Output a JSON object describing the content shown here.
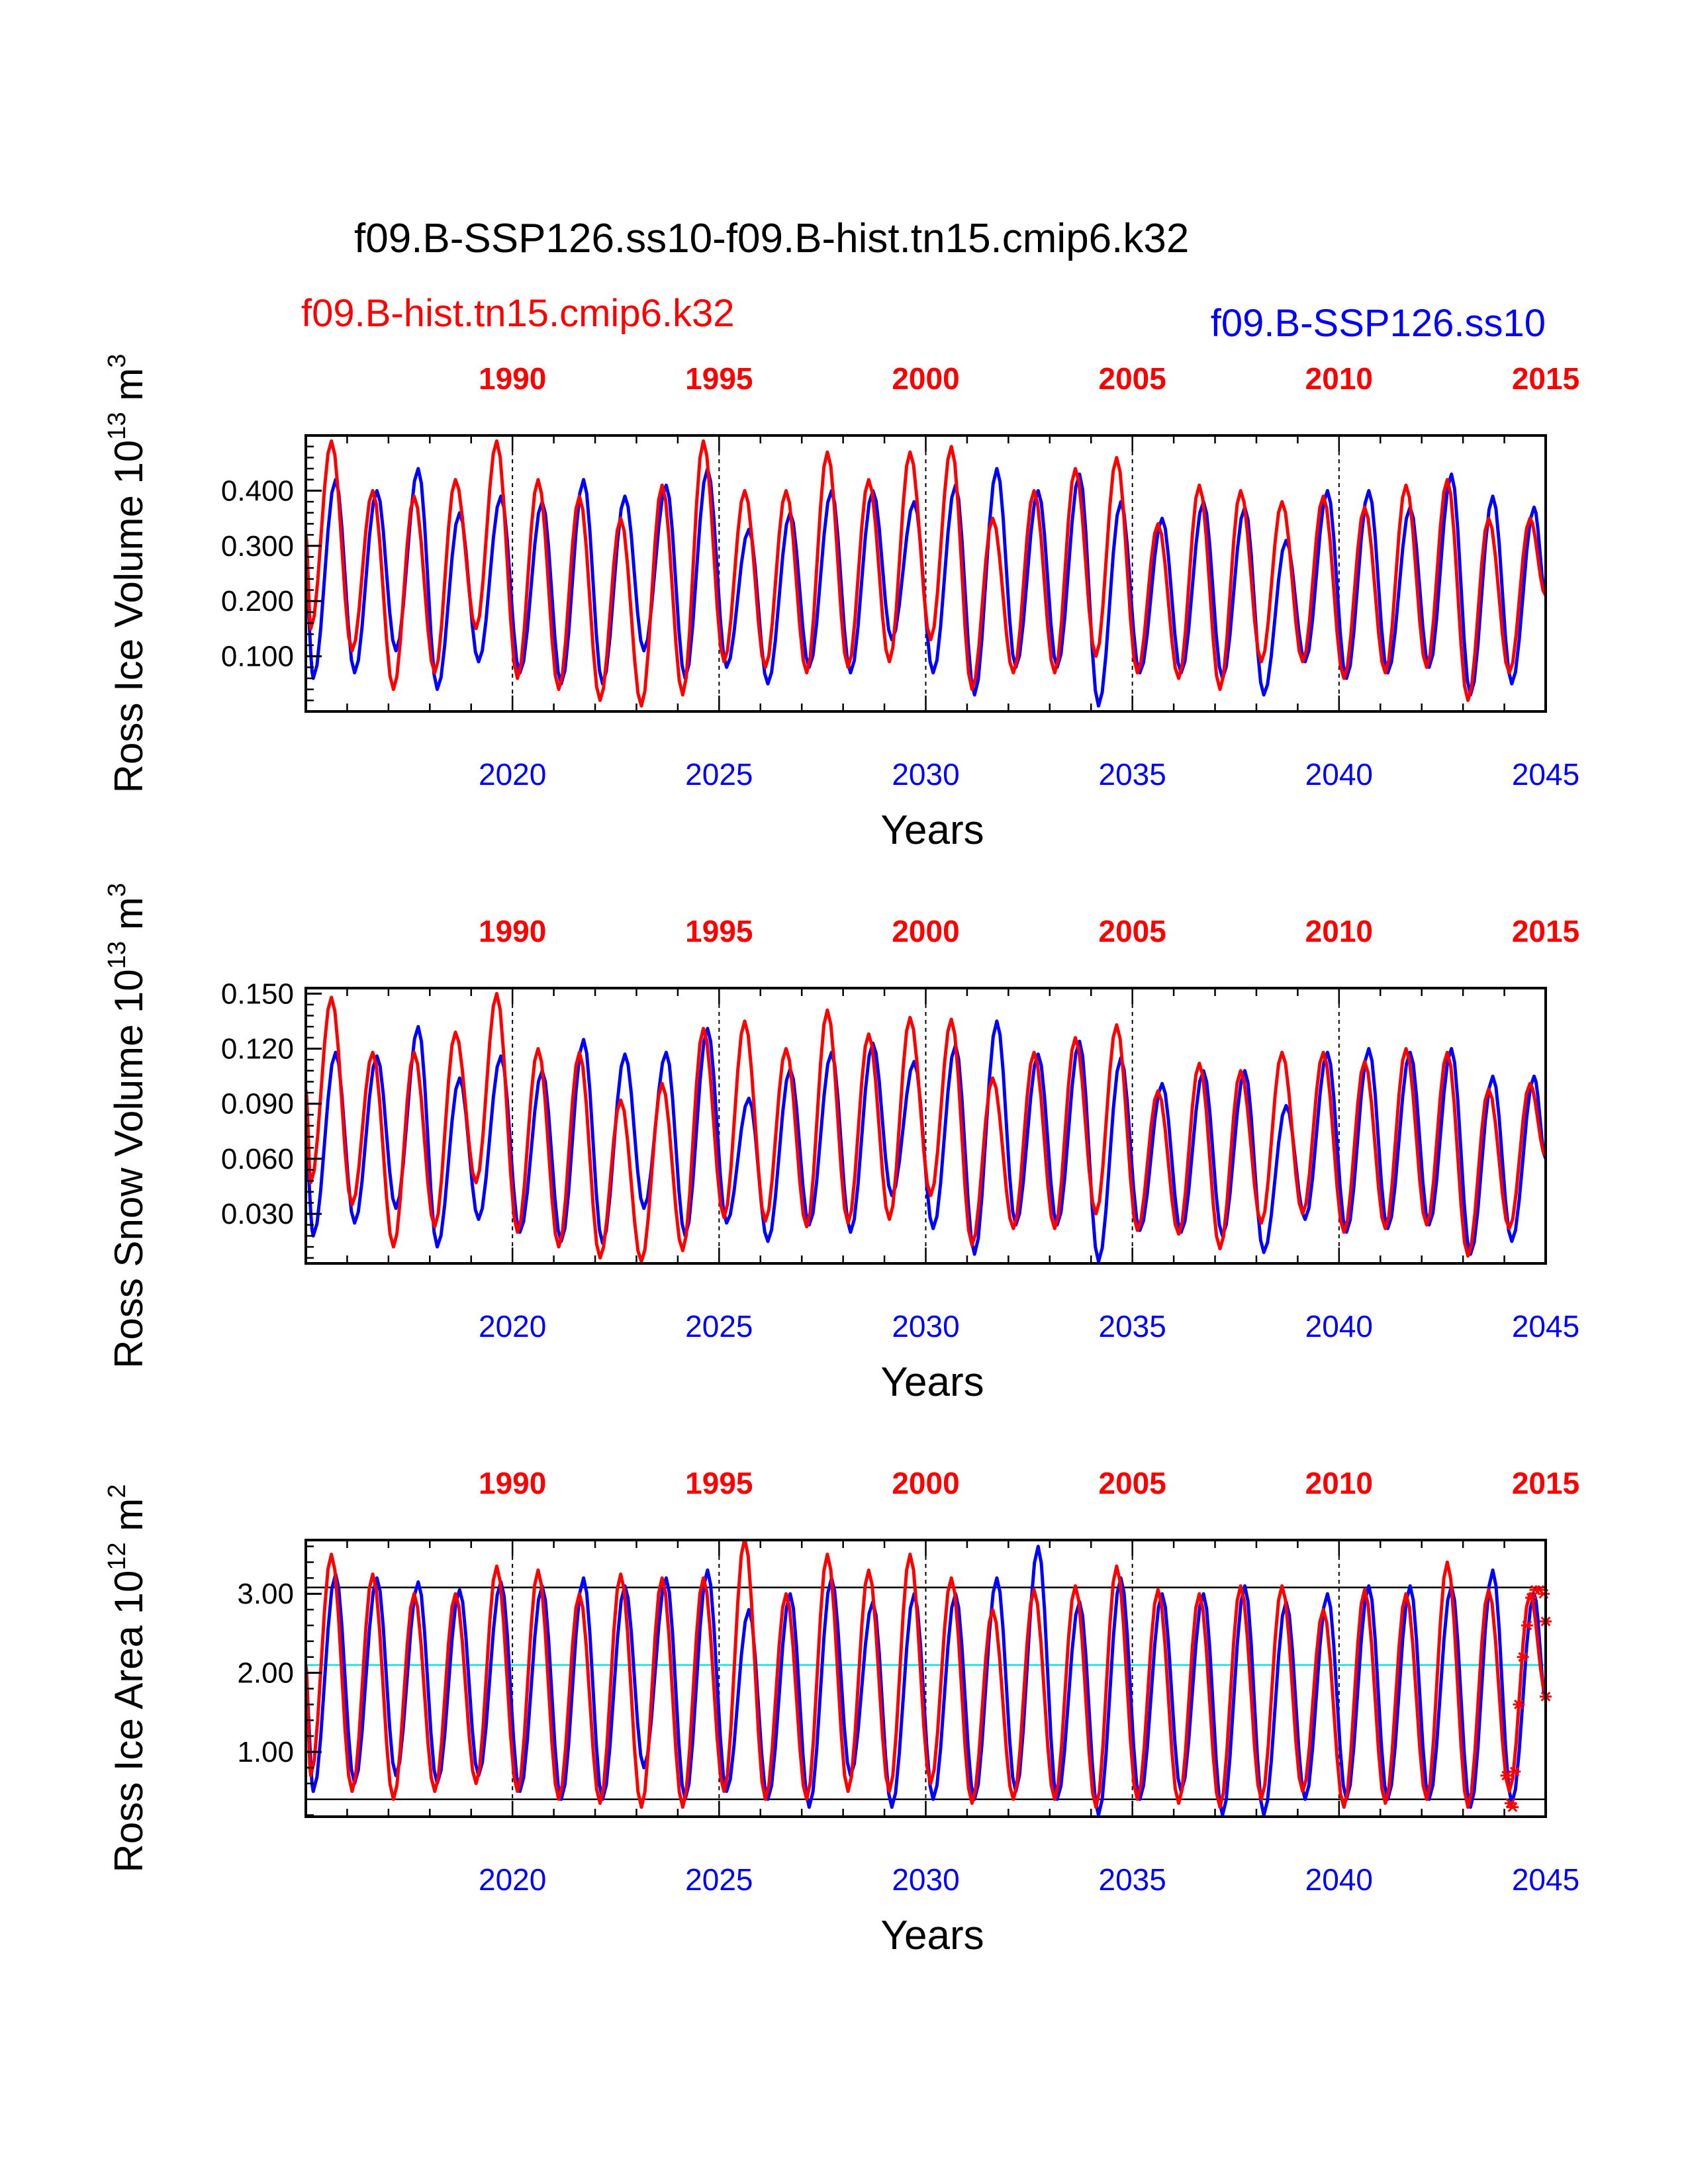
{
  "figure": {
    "title": "f09.B-SSP126.ss10-f09.B-hist.tn15.cmip6.k32",
    "legend_hist": "f09.B-hist.tn15.cmip6.k32",
    "legend_ssp": "f09.B-SSP126.ss10",
    "colors": {
      "hist": "#ff0000",
      "ssp": "#0000ff",
      "threshold": "#00e5e5",
      "axis": "#000000"
    }
  },
  "chart_data": [
    {
      "type": "line",
      "name": "ross-ice-volume",
      "ylabel": "Ross Ice Volume 10",
      "ylabel_exp": "13",
      "ylabel_unit": "m",
      "ylabel_unit_exp": "3",
      "xlabel": "Years",
      "x_range_ssp": [
        2015,
        2045
      ],
      "x_range_hist": [
        1985,
        2015
      ],
      "ylim": [
        0.0,
        0.5
      ],
      "yticks": [
        0.1,
        0.2,
        0.3,
        0.4
      ],
      "ytick_labels": [
        "0.100",
        "0.200",
        "0.300",
        "0.400"
      ],
      "xticks_ssp": [
        "2020",
        "2025",
        "2030",
        "2035",
        "2040",
        "2045"
      ],
      "xticks_hist": [
        "1990",
        "1995",
        "2000",
        "2005",
        "2010",
        "2015"
      ],
      "seasonal": {
        "ssp_max": [
          0.42,
          0.4,
          0.44,
          0.36,
          0.39,
          0.38,
          0.42,
          0.39,
          0.41,
          0.44,
          0.33,
          0.36,
          0.4,
          0.4,
          0.38,
          0.41,
          0.44,
          0.4,
          0.43,
          0.38,
          0.35,
          0.38,
          0.37,
          0.31,
          0.4,
          0.4,
          0.37,
          0.43,
          0.39,
          0.37
        ],
        "ssp_min": [
          0.06,
          0.07,
          0.11,
          0.04,
          0.09,
          0.07,
          0.05,
          0.05,
          0.11,
          0.06,
          0.08,
          0.05,
          0.08,
          0.07,
          0.13,
          0.07,
          0.03,
          0.08,
          0.08,
          0.01,
          0.07,
          0.07,
          0.06,
          0.03,
          0.09,
          0.06,
          0.07,
          0.08,
          0.03,
          0.05
        ],
        "hist_max": [
          0.49,
          0.4,
          0.39,
          0.42,
          0.49,
          0.42,
          0.39,
          0.35,
          0.41,
          0.49,
          0.4,
          0.4,
          0.47,
          0.42,
          0.47,
          0.48,
          0.35,
          0.4,
          0.44,
          0.46,
          0.34,
          0.41,
          0.4,
          0.38,
          0.39,
          0.37,
          0.41,
          0.42,
          0.35,
          0.35
        ],
        "hist_min": [
          0.15,
          0.11,
          0.04,
          0.07,
          0.15,
          0.06,
          0.04,
          0.02,
          0.01,
          0.03,
          0.09,
          0.08,
          0.07,
          0.08,
          0.09,
          0.13,
          0.04,
          0.07,
          0.07,
          0.1,
          0.07,
          0.06,
          0.04,
          0.09,
          0.09,
          0.06,
          0.07,
          0.08,
          0.02,
          0.07
        ]
      }
    },
    {
      "type": "line",
      "name": "ross-snow-volume",
      "ylabel": "Ross Snow Volume 10",
      "ylabel_exp": "13",
      "ylabel_unit": "m",
      "ylabel_unit_exp": "3",
      "xlabel": "Years",
      "x_range_ssp": [
        2015,
        2045
      ],
      "x_range_hist": [
        1985,
        2015
      ],
      "ylim": [
        0.003,
        0.153
      ],
      "yticks": [
        0.03,
        0.06,
        0.09,
        0.12,
        0.15
      ],
      "ytick_labels": [
        "0.030",
        "0.060",
        "0.090",
        "0.120",
        "0.150"
      ],
      "xticks_ssp": [
        "2020",
        "2025",
        "2030",
        "2035",
        "2040",
        "2045"
      ],
      "xticks_hist": [
        "1990",
        "1995",
        "2000",
        "2005",
        "2010",
        "2015"
      ],
      "seasonal": {
        "ssp_max": [
          0.118,
          0.116,
          0.132,
          0.104,
          0.116,
          0.108,
          0.125,
          0.117,
          0.118,
          0.131,
          0.093,
          0.109,
          0.118,
          0.123,
          0.113,
          0.122,
          0.135,
          0.117,
          0.124,
          0.115,
          0.101,
          0.108,
          0.108,
          0.089,
          0.118,
          0.12,
          0.118,
          0.12,
          0.105,
          0.105
        ],
        "ssp_min": [
          0.018,
          0.025,
          0.033,
          0.012,
          0.027,
          0.02,
          0.015,
          0.014,
          0.033,
          0.018,
          0.025,
          0.015,
          0.024,
          0.02,
          0.04,
          0.022,
          0.008,
          0.024,
          0.024,
          0.004,
          0.021,
          0.02,
          0.018,
          0.009,
          0.027,
          0.02,
          0.022,
          0.024,
          0.008,
          0.015
        ],
        "hist_max": [
          0.148,
          0.118,
          0.118,
          0.129,
          0.15,
          0.12,
          0.118,
          0.092,
          0.101,
          0.131,
          0.135,
          0.12,
          0.141,
          0.128,
          0.137,
          0.136,
          0.104,
          0.118,
          0.126,
          0.133,
          0.097,
          0.112,
          0.108,
          0.118,
          0.118,
          0.113,
          0.12,
          0.118,
          0.098,
          0.101
        ],
        "hist_min": [
          0.047,
          0.035,
          0.012,
          0.023,
          0.047,
          0.02,
          0.012,
          0.006,
          0.004,
          0.01,
          0.028,
          0.026,
          0.023,
          0.025,
          0.027,
          0.04,
          0.013,
          0.022,
          0.022,
          0.03,
          0.021,
          0.019,
          0.011,
          0.025,
          0.03,
          0.02,
          0.022,
          0.024,
          0.007,
          0.022
        ]
      }
    },
    {
      "type": "line",
      "name": "ross-ice-area",
      "ylabel": "Ross Ice Area 10",
      "ylabel_exp": "12",
      "ylabel_unit": "m",
      "ylabel_unit_exp": "2",
      "xlabel": "Years",
      "x_range_ssp": [
        2015,
        2045
      ],
      "x_range_hist": [
        1985,
        2015
      ],
      "ylim": [
        0.18,
        3.68
      ],
      "yticks": [
        1.0,
        2.0,
        3.0
      ],
      "ytick_labels": [
        "1.00",
        "2.00",
        "3.00"
      ],
      "xticks_ssp": [
        "2020",
        "2025",
        "2030",
        "2035",
        "2040",
        "2045"
      ],
      "xticks_hist": [
        "1990",
        "1995",
        "2000",
        "2005",
        "2010",
        "2015"
      ],
      "reference_lines": {
        "upper": 3.08,
        "mean": 2.1,
        "lower": 0.4
      },
      "marker_points": [
        [
          2044.05,
          0.7
        ],
        [
          2044.15,
          0.35
        ],
        [
          2044.2,
          0.3
        ],
        [
          2044.25,
          0.75
        ],
        [
          2044.35,
          1.6
        ],
        [
          2044.45,
          2.2
        ],
        [
          2044.55,
          2.6
        ],
        [
          2044.65,
          2.95
        ],
        [
          2044.75,
          3.05
        ],
        [
          2044.85,
          3.05
        ],
        [
          2044.95,
          3.0
        ],
        [
          2045.0,
          2.65
        ],
        [
          2045.0,
          1.7
        ]
      ],
      "seasonal": {
        "ssp_max": [
          3.25,
          3.2,
          3.15,
          3.05,
          3.15,
          3.1,
          3.2,
          3.1,
          3.2,
          3.3,
          2.8,
          3.0,
          3.2,
          2.9,
          3.0,
          3.0,
          3.2,
          3.6,
          2.9,
          3.2,
          3.0,
          3.0,
          3.1,
          2.9,
          3.0,
          3.1,
          3.1,
          3.1,
          3.3,
          3.0
        ],
        "ssp_min": [
          0.5,
          0.6,
          0.7,
          0.6,
          0.7,
          0.5,
          0.4,
          0.4,
          0.8,
          0.4,
          0.5,
          0.4,
          0.3,
          0.7,
          0.3,
          0.4,
          0.4,
          0.5,
          0.4,
          0.2,
          0.4,
          0.5,
          0.2,
          0.2,
          0.4,
          0.4,
          0.4,
          0.4,
          0.3,
          0.35
        ],
        "hist_max": [
          3.5,
          3.25,
          3.0,
          3.0,
          3.35,
          3.3,
          3.0,
          3.25,
          3.2,
          3.2,
          3.7,
          3.0,
          3.5,
          3.3,
          3.5,
          3.2,
          2.8,
          3.05,
          3.1,
          3.35,
          3.05,
          3.0,
          3.1,
          3.1,
          2.8,
          3.05,
          3.0,
          3.4,
          3.05,
          3.0
        ],
        "hist_min": [
          0.7,
          0.5,
          0.4,
          0.5,
          0.6,
          0.5,
          0.4,
          0.35,
          0.3,
          0.3,
          0.5,
          0.4,
          0.4,
          0.5,
          0.5,
          0.6,
          0.35,
          0.4,
          0.4,
          0.3,
          0.4,
          0.35,
          0.3,
          0.4,
          0.5,
          0.3,
          0.35,
          0.4,
          0.3,
          0.5
        ]
      }
    }
  ]
}
